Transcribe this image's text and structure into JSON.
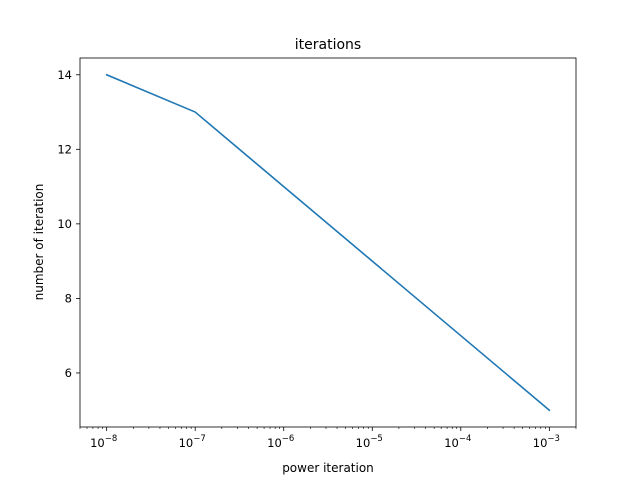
{
  "chart_data": {
    "type": "line",
    "title": "iterations",
    "xlabel": "power iteration",
    "ylabel": "number of iteration",
    "xscale": "log",
    "xlim": [
      5e-09,
      0.002
    ],
    "ylim": [
      4.55,
      14.45
    ],
    "x_ticks": [
      {
        "base": "10",
        "exp": "−8",
        "value": 1e-08
      },
      {
        "base": "10",
        "exp": "−7",
        "value": 1e-07
      },
      {
        "base": "10",
        "exp": "−6",
        "value": 1e-06
      },
      {
        "base": "10",
        "exp": "−5",
        "value": 1e-05
      },
      {
        "base": "10",
        "exp": "−4",
        "value": 0.0001
      },
      {
        "base": "10",
        "exp": "−3",
        "value": 0.001
      }
    ],
    "y_ticks": [
      {
        "label": "6",
        "value": 6
      },
      {
        "label": "8",
        "value": 8
      },
      {
        "label": "10",
        "value": 10
      },
      {
        "label": "12",
        "value": 12
      },
      {
        "label": "14",
        "value": 14
      }
    ],
    "grid": false,
    "legend": null,
    "series": [
      {
        "color": "#1f77b4",
        "x": [
          1e-08,
          1e-07,
          1e-06,
          1e-05,
          0.0001,
          0.001
        ],
        "y": [
          14,
          13,
          11,
          9,
          7,
          5
        ]
      }
    ]
  }
}
